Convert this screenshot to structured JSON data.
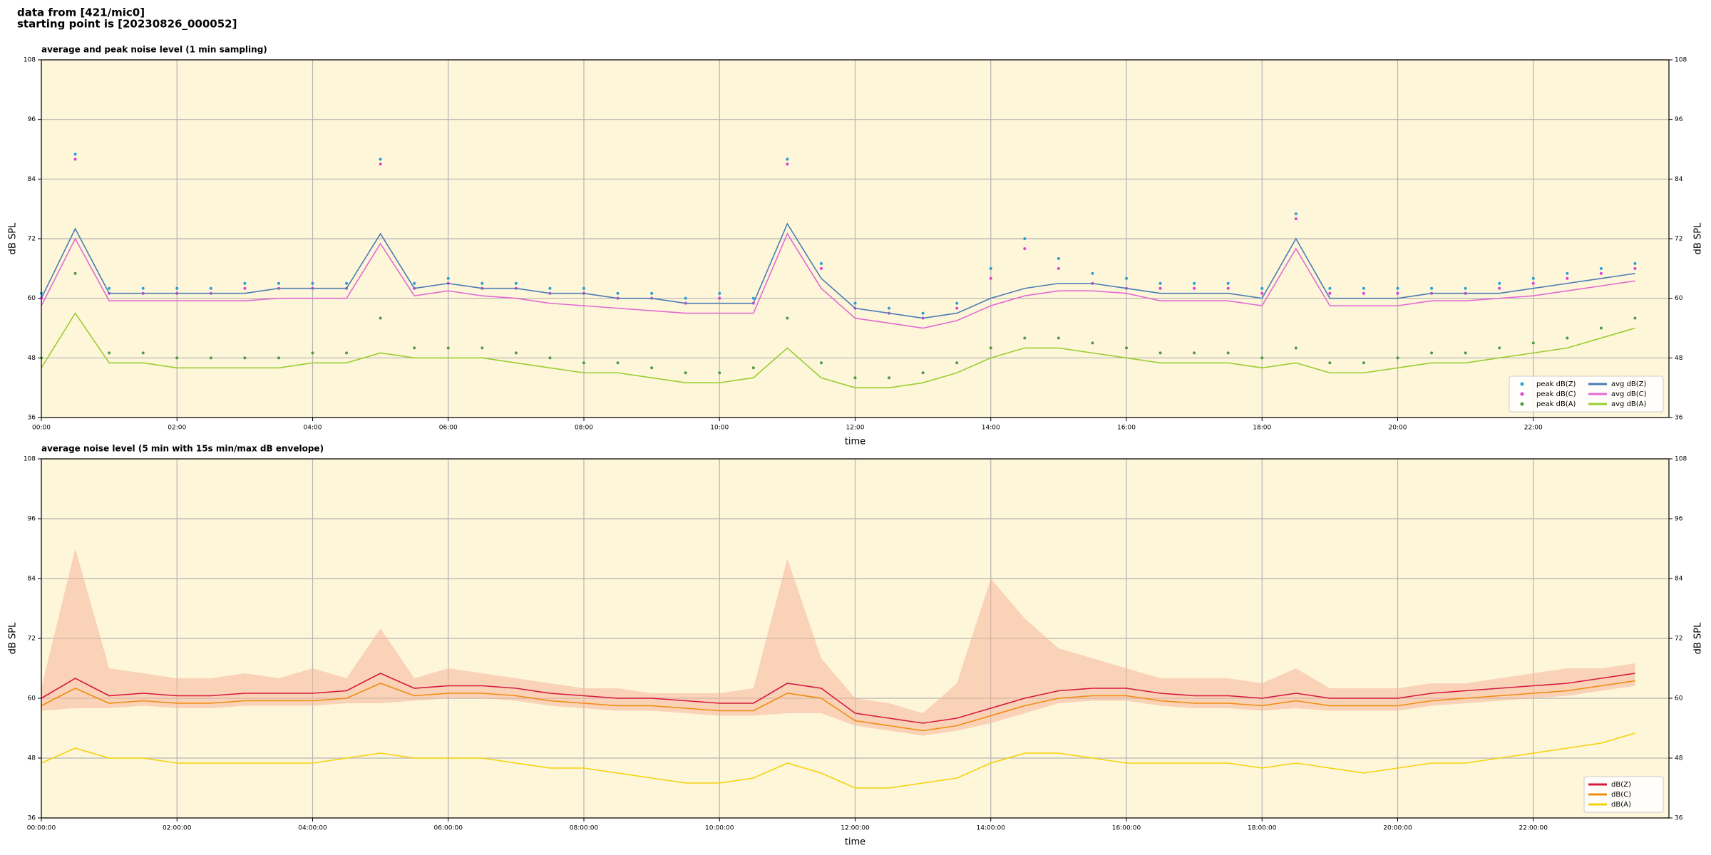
{
  "title_lines": [
    "data from [421/mic0]",
    "starting point is [20230826_000052]"
  ],
  "chart_data": [
    {
      "type": "line",
      "title": "average and peak noise level (1 min sampling)",
      "xlabel": "time",
      "ylabel": "dB SPL",
      "y2label": "dB SPL",
      "x": [
        0,
        0.5,
        1,
        1.5,
        2,
        2.5,
        3,
        3.5,
        4,
        4.5,
        5,
        5.5,
        6,
        6.5,
        7,
        7.5,
        8,
        8.5,
        9,
        9.5,
        10,
        10.5,
        11,
        11.5,
        12,
        12.5,
        13,
        13.5,
        14,
        14.5,
        15,
        15.5,
        16,
        16.5,
        17,
        17.5,
        18,
        18.5,
        19,
        19.5,
        20,
        20.5,
        21,
        21.5,
        22,
        22.5,
        23,
        23.5
      ],
      "xlim": [
        0,
        24
      ],
      "xticks": [
        {
          "value": 0,
          "label": "00:00"
        },
        {
          "value": 2,
          "label": "02:00"
        },
        {
          "value": 4,
          "label": "04:00"
        },
        {
          "value": 6,
          "label": "06:00"
        },
        {
          "value": 8,
          "label": "08:00"
        },
        {
          "value": 10,
          "label": "10:00"
        },
        {
          "value": 12,
          "label": "12:00"
        },
        {
          "value": 14,
          "label": "14:00"
        },
        {
          "value": 16,
          "label": "16:00"
        },
        {
          "value": 18,
          "label": "18:00"
        },
        {
          "value": 20,
          "label": "20:00"
        },
        {
          "value": 22,
          "label": "22:00"
        }
      ],
      "ylim": [
        36,
        108
      ],
      "yticks": [
        36,
        48,
        60,
        72,
        84,
        96,
        108
      ],
      "y2lim": [
        36,
        108
      ],
      "y2ticks": [
        36,
        48,
        60,
        72,
        84,
        96,
        108
      ],
      "grid": true,
      "background": "#fef6d9",
      "legend": "lower right",
      "legend_columns": 2,
      "series": [
        {
          "name": "peak dB(Z)",
          "kind": "scatter",
          "color": "#2a9fd6",
          "values": [
            61,
            89,
            62,
            62,
            62,
            62,
            63,
            63,
            63,
            63,
            88,
            63,
            64,
            63,
            63,
            62,
            62,
            61,
            61,
            60,
            61,
            60,
            88,
            67,
            59,
            58,
            57,
            59,
            66,
            72,
            68,
            65,
            64,
            63,
            63,
            63,
            62,
            77,
            62,
            62,
            62,
            62,
            62,
            63,
            64,
            65,
            66,
            67
          ]
        },
        {
          "name": "peak dB(C)",
          "kind": "scatter",
          "color": "#e040d8",
          "values": [
            60,
            88,
            61,
            61,
            61,
            61,
            62,
            62,
            62,
            62,
            87,
            62,
            63,
            62,
            62,
            61,
            61,
            60,
            60,
            59,
            60,
            59,
            87,
            66,
            58,
            57,
            56,
            58,
            64,
            70,
            66,
            63,
            62,
            62,
            62,
            62,
            61,
            76,
            61,
            61,
            61,
            61,
            61,
            62,
            63,
            64,
            65,
            66
          ]
        },
        {
          "name": "peak dB(A)",
          "kind": "scatter",
          "color": "#4f9a45",
          "values": [
            48,
            65,
            49,
            49,
            48,
            48,
            48,
            48,
            49,
            49,
            56,
            50,
            50,
            50,
            49,
            48,
            47,
            47,
            46,
            45,
            45,
            46,
            56,
            47,
            44,
            44,
            45,
            47,
            50,
            52,
            52,
            51,
            50,
            49,
            49,
            49,
            48,
            50,
            47,
            47,
            48,
            49,
            49,
            50,
            51,
            52,
            54,
            56
          ]
        },
        {
          "name": "avg dB(Z)",
          "kind": "line",
          "color": "#4a7db3",
          "values": [
            60,
            74,
            61,
            61,
            61,
            61,
            61,
            62,
            62,
            62,
            73,
            62,
            63,
            62,
            62,
            61,
            61,
            60,
            60,
            59,
            59,
            59,
            75,
            64,
            58,
            57,
            56,
            57,
            60,
            62,
            63,
            63,
            62,
            61,
            61,
            61,
            60,
            72,
            60,
            60,
            60,
            61,
            61,
            61,
            62,
            63,
            64,
            65
          ]
        },
        {
          "name": "avg dB(C)",
          "kind": "line",
          "color": "#e36ad2",
          "values": [
            58.5,
            72,
            59.5,
            59.5,
            59.5,
            59.5,
            59.5,
            60,
            60,
            60,
            71,
            60.5,
            61.5,
            60.5,
            60,
            59,
            58.5,
            58,
            57.5,
            57,
            57,
            57,
            73,
            62,
            56,
            55,
            54,
            55.5,
            58.5,
            60.5,
            61.5,
            61.5,
            61,
            59.5,
            59.5,
            59.5,
            58.5,
            70,
            58.5,
            58.5,
            58.5,
            59.5,
            59.5,
            60,
            60.5,
            61.5,
            62.5,
            63.5
          ]
        },
        {
          "name": "avg dB(A)",
          "kind": "line",
          "color": "#9acd32",
          "values": [
            46,
            57,
            47,
            47,
            46,
            46,
            46,
            46,
            47,
            47,
            49,
            48,
            48,
            48,
            47,
            46,
            45,
            45,
            44,
            43,
            43,
            44,
            50,
            44,
            42,
            42,
            43,
            45,
            48,
            50,
            50,
            49,
            48,
            47,
            47,
            47,
            46,
            47,
            45,
            45,
            46,
            47,
            47,
            48,
            49,
            50,
            52,
            54
          ]
        }
      ]
    },
    {
      "type": "line",
      "title": "average noise level (5 min with 15s min/max dB envelope)",
      "xlabel": "time",
      "ylabel": "dB SPL",
      "y2label": "dB SPL",
      "x": [
        0,
        0.5,
        1,
        1.5,
        2,
        2.5,
        3,
        3.5,
        4,
        4.5,
        5,
        5.5,
        6,
        6.5,
        7,
        7.5,
        8,
        8.5,
        9,
        9.5,
        10,
        10.5,
        11,
        11.5,
        12,
        12.5,
        13,
        13.5,
        14,
        14.5,
        15,
        15.5,
        16,
        16.5,
        17,
        17.5,
        18,
        18.5,
        19,
        19.5,
        20,
        20.5,
        21,
        21.5,
        22,
        22.5,
        23,
        23.5
      ],
      "xlim": [
        0,
        24
      ],
      "xticks": [
        {
          "value": 0,
          "label": "00:00:00"
        },
        {
          "value": 2,
          "label": "02:00:00"
        },
        {
          "value": 4,
          "label": "04:00:00"
        },
        {
          "value": 6,
          "label": "06:00:00"
        },
        {
          "value": 8,
          "label": "08:00:00"
        },
        {
          "value": 10,
          "label": "10:00:00"
        },
        {
          "value": 12,
          "label": "12:00:00"
        },
        {
          "value": 14,
          "label": "14:00:00"
        },
        {
          "value": 16,
          "label": "16:00:00"
        },
        {
          "value": 18,
          "label": "18:00:00"
        },
        {
          "value": 20,
          "label": "20:00:00"
        },
        {
          "value": 22,
          "label": "22:00:00"
        }
      ],
      "ylim": [
        36,
        108
      ],
      "yticks": [
        36,
        48,
        60,
        72,
        84,
        96,
        108
      ],
      "y2lim": [
        36,
        108
      ],
      "y2ticks": [
        36,
        48,
        60,
        72,
        84,
        96,
        108
      ],
      "grid": true,
      "background": "#fef6d9",
      "legend": "lower right",
      "legend_columns": 1,
      "envelope": {
        "color": "#f4b49a",
        "upper": [
          62,
          90,
          66,
          65,
          64,
          64,
          65,
          64,
          66,
          64,
          74,
          64,
          66,
          65,
          64,
          63,
          62,
          62,
          61,
          61,
          61,
          62,
          88,
          68,
          60,
          59,
          57,
          63,
          84,
          76,
          70,
          68,
          66,
          64,
          64,
          64,
          63,
          66,
          62,
          62,
          62,
          63,
          63,
          64,
          65,
          66,
          66,
          67
        ],
        "lower": [
          57.5,
          58,
          58,
          58.5,
          58,
          58,
          58.5,
          58.5,
          58.5,
          59,
          59,
          59.5,
          60,
          60,
          59.5,
          58.5,
          58,
          57.5,
          57.5,
          57,
          56.5,
          56.5,
          57,
          57,
          54.5,
          53.5,
          52.5,
          53.5,
          55,
          57,
          59,
          59.5,
          59.5,
          58.5,
          58,
          58,
          57.5,
          58,
          57.5,
          57.5,
          57.5,
          58.5,
          59,
          59.5,
          60,
          60.5,
          61.5,
          62.5
        ]
      },
      "series": [
        {
          "name": "dB(Z)",
          "kind": "line",
          "color": "#d7193f",
          "values": [
            60,
            64,
            60.5,
            61,
            60.5,
            60.5,
            61,
            61,
            61,
            61.5,
            65,
            62,
            62.5,
            62.5,
            62,
            61,
            60.5,
            60,
            60,
            59.5,
            59,
            59,
            63,
            62,
            57,
            56,
            55,
            56,
            58,
            60,
            61.5,
            62,
            62,
            61,
            60.5,
            60.5,
            60,
            61,
            60,
            60,
            60,
            61,
            61.5,
            62,
            62.5,
            63,
            64,
            65
          ]
        },
        {
          "name": "dB(C)",
          "kind": "line",
          "color": "#f28c0f",
          "values": [
            58.5,
            62,
            59,
            59.5,
            59,
            59,
            59.5,
            59.5,
            59.5,
            60,
            63,
            60.5,
            61,
            61,
            60.5,
            59.5,
            59,
            58.5,
            58.5,
            58,
            57.5,
            57.5,
            61,
            60,
            55.5,
            54.5,
            53.5,
            54.5,
            56.5,
            58.5,
            60,
            60.5,
            60.5,
            59.5,
            59,
            59,
            58.5,
            59.5,
            58.5,
            58.5,
            58.5,
            59.5,
            60,
            60.5,
            61,
            61.5,
            62.5,
            63.5
          ]
        },
        {
          "name": "dB(A)",
          "kind": "line",
          "color": "#f5d20a",
          "values": [
            47,
            50,
            48,
            48,
            47,
            47,
            47,
            47,
            47,
            48,
            49,
            48,
            48,
            48,
            47,
            46,
            46,
            45,
            44,
            43,
            43,
            44,
            47,
            45,
            42,
            42,
            43,
            44,
            47,
            49,
            49,
            48,
            47,
            47,
            47,
            47,
            46,
            47,
            46,
            45,
            46,
            47,
            47,
            48,
            49,
            50,
            51,
            53
          ]
        }
      ]
    }
  ]
}
